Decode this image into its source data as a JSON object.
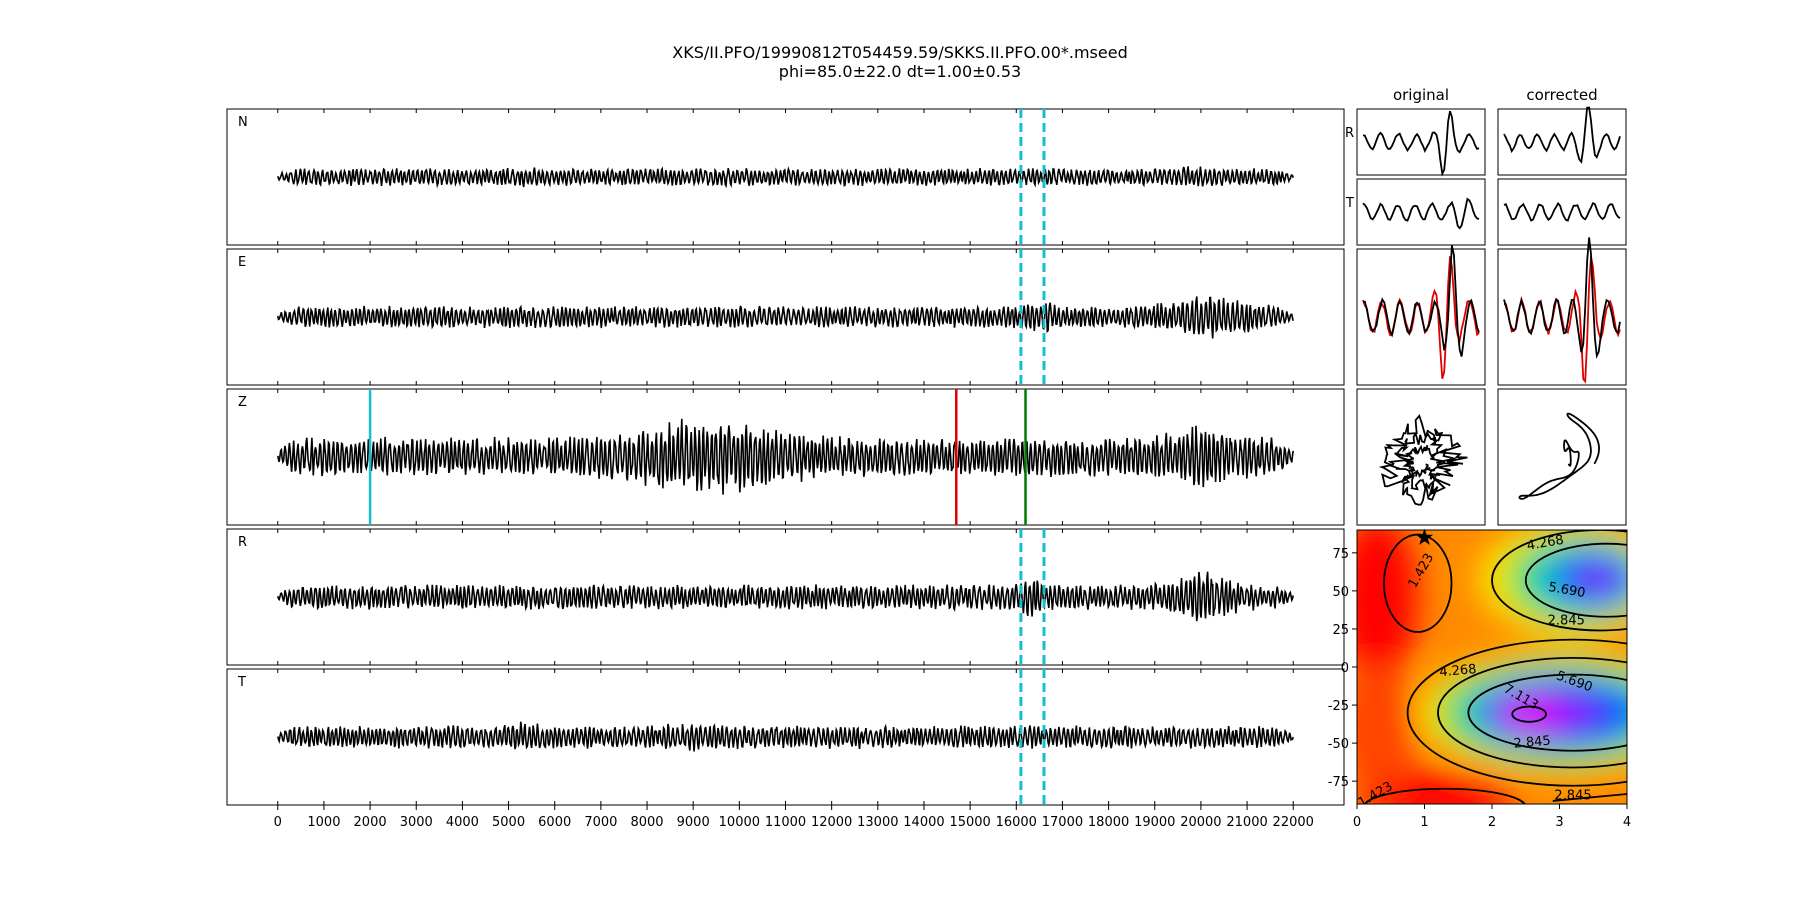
{
  "title_line1": "XKS/II.PFO/19990812T054459.59/SKKS.II.PFO.00*.mseed",
  "title_line2": "phi=85.0±22.0 dt=1.00±0.53",
  "col_original": "original",
  "col_corrected": "corrected",
  "chart_data": [
    {
      "type": "line",
      "name": "seismogram-traces",
      "traces": [
        "N",
        "E",
        "Z",
        "R",
        "T"
      ],
      "x_ticks": [
        0,
        1000,
        2000,
        3000,
        4000,
        5000,
        6000,
        7000,
        8000,
        9000,
        10000,
        11000,
        12000,
        13000,
        14000,
        15000,
        16000,
        17000,
        18000,
        19000,
        20000,
        21000,
        22000
      ],
      "xlim": [
        -1100,
        23100
      ],
      "data_range": [
        0,
        22000
      ],
      "window_lines": {
        "traces": [
          "N",
          "E",
          "R",
          "T"
        ],
        "x": [
          16100,
          16600
        ],
        "color": "#17becf",
        "style": "dashed"
      },
      "picks_Z": [
        {
          "x": 2000,
          "color": "#17becf"
        },
        {
          "x": 14700,
          "color": "#e00000"
        },
        {
          "x": 16200,
          "color": "#007a00"
        }
      ]
    },
    {
      "type": "line",
      "name": "particle-panels",
      "row_labels": [
        "R",
        "T"
      ],
      "columns": [
        "original",
        "corrected"
      ],
      "overlay_colors": [
        "#000000",
        "#e00000"
      ]
    },
    {
      "type": "heatmap",
      "name": "energy-grid",
      "x_ticks": [
        0,
        1,
        2,
        3,
        4
      ],
      "y_ticks": [
        75,
        50,
        25,
        0,
        -25,
        -50,
        -75
      ],
      "xlim": [
        0,
        4
      ],
      "ylim": [
        -90,
        90
      ],
      "contour_labels": [
        "1.423",
        "4.268",
        "5.690",
        "2.845",
        "4.268",
        "5.690",
        "7.113",
        "2.845",
        "1.423",
        "2.845"
      ],
      "best_fit": {
        "dt": 1.0,
        "phi": 85.0
      }
    }
  ]
}
